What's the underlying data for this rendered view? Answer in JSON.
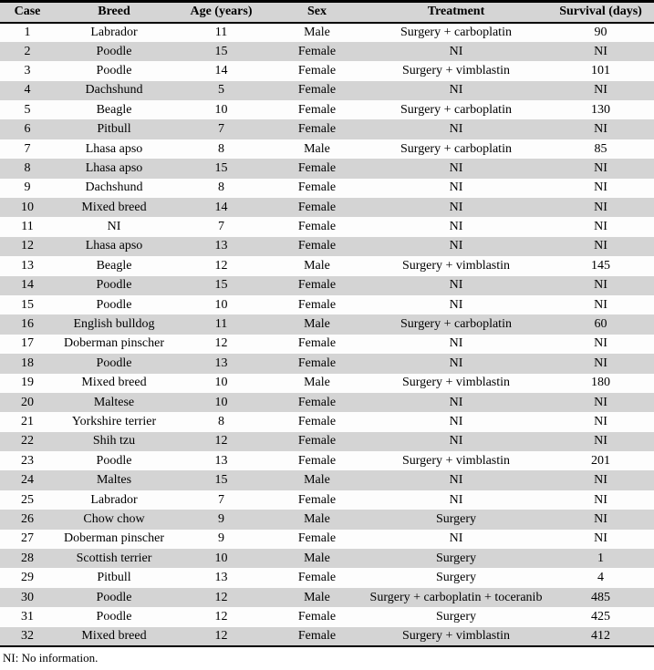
{
  "colors": {
    "stripe": "#d4d4d4",
    "header_bg": "#d5d5d5",
    "rule": "#000000",
    "text": "#000000"
  },
  "table": {
    "columns": [
      "Case",
      "Breed",
      "Age (years)",
      "Sex",
      "Treatment",
      "Survival (days)"
    ],
    "column_keys": [
      "case",
      "breed",
      "age",
      "sex",
      "treatment",
      "survival"
    ],
    "rows": [
      [
        "1",
        "Labrador",
        "11",
        "Male",
        "Surgery + carboplatin",
        "90"
      ],
      [
        "2",
        "Poodle",
        "15",
        "Female",
        "NI",
        "NI"
      ],
      [
        "3",
        "Poodle",
        "14",
        "Female",
        "Surgery + vimblastin",
        "101"
      ],
      [
        "4",
        "Dachshund",
        "5",
        "Female",
        "NI",
        "NI"
      ],
      [
        "5",
        "Beagle",
        "10",
        "Female",
        "Surgery + carboplatin",
        "130"
      ],
      [
        "6",
        "Pitbull",
        "7",
        "Female",
        "NI",
        "NI"
      ],
      [
        "7",
        "Lhasa apso",
        "8",
        "Male",
        "Surgery + carboplatin",
        "85"
      ],
      [
        "8",
        "Lhasa apso",
        "15",
        "Female",
        "NI",
        "NI"
      ],
      [
        "9",
        "Dachshund",
        "8",
        "Female",
        "NI",
        "NI"
      ],
      [
        "10",
        "Mixed breed",
        "14",
        "Female",
        "NI",
        "NI"
      ],
      [
        "11",
        "NI",
        "7",
        "Female",
        "NI",
        "NI"
      ],
      [
        "12",
        "Lhasa apso",
        "13",
        "Female",
        "NI",
        "NI"
      ],
      [
        "13",
        "Beagle",
        "12",
        "Male",
        "Surgery + vimblastin",
        "145"
      ],
      [
        "14",
        "Poodle",
        "15",
        "Female",
        "NI",
        "NI"
      ],
      [
        "15",
        "Poodle",
        "10",
        "Female",
        "NI",
        "NI"
      ],
      [
        "16",
        "English bulldog",
        "11",
        "Male",
        "Surgery + carboplatin",
        "60"
      ],
      [
        "17",
        "Doberman pinscher",
        "12",
        "Female",
        "NI",
        "NI"
      ],
      [
        "18",
        "Poodle",
        "13",
        "Female",
        "NI",
        "NI"
      ],
      [
        "19",
        "Mixed breed",
        "10",
        "Male",
        "Surgery + vimblastin",
        "180"
      ],
      [
        "20",
        "Maltese",
        "10",
        "Female",
        "NI",
        "NI"
      ],
      [
        "21",
        "Yorkshire terrier",
        "8",
        "Female",
        "NI",
        "NI"
      ],
      [
        "22",
        "Shih tzu",
        "12",
        "Female",
        "NI",
        "NI"
      ],
      [
        "23",
        "Poodle",
        "13",
        "Female",
        "Surgery + vimblastin",
        "201"
      ],
      [
        "24",
        "Maltes",
        "15",
        "Male",
        "NI",
        "NI"
      ],
      [
        "25",
        "Labrador",
        "7",
        "Female",
        "NI",
        "NI"
      ],
      [
        "26",
        "Chow chow",
        "9",
        "Male",
        "Surgery",
        "NI"
      ],
      [
        "27",
        "Doberman pinscher",
        "9",
        "Female",
        "NI",
        "NI"
      ],
      [
        "28",
        "Scottish terrier",
        "10",
        "Male",
        "Surgery",
        "1"
      ],
      [
        "29",
        "Pitbull",
        "13",
        "Female",
        "Surgery",
        "4"
      ],
      [
        "30",
        "Poodle",
        "12",
        "Male",
        "Surgery + carboplatin + toceranib",
        "485"
      ],
      [
        "31",
        "Poodle",
        "12",
        "Female",
        "Surgery",
        "425"
      ],
      [
        "32",
        "Mixed breed",
        "12",
        "Female",
        "Surgery + vimblastin",
        "412"
      ]
    ]
  },
  "footnote": "NI: No information."
}
